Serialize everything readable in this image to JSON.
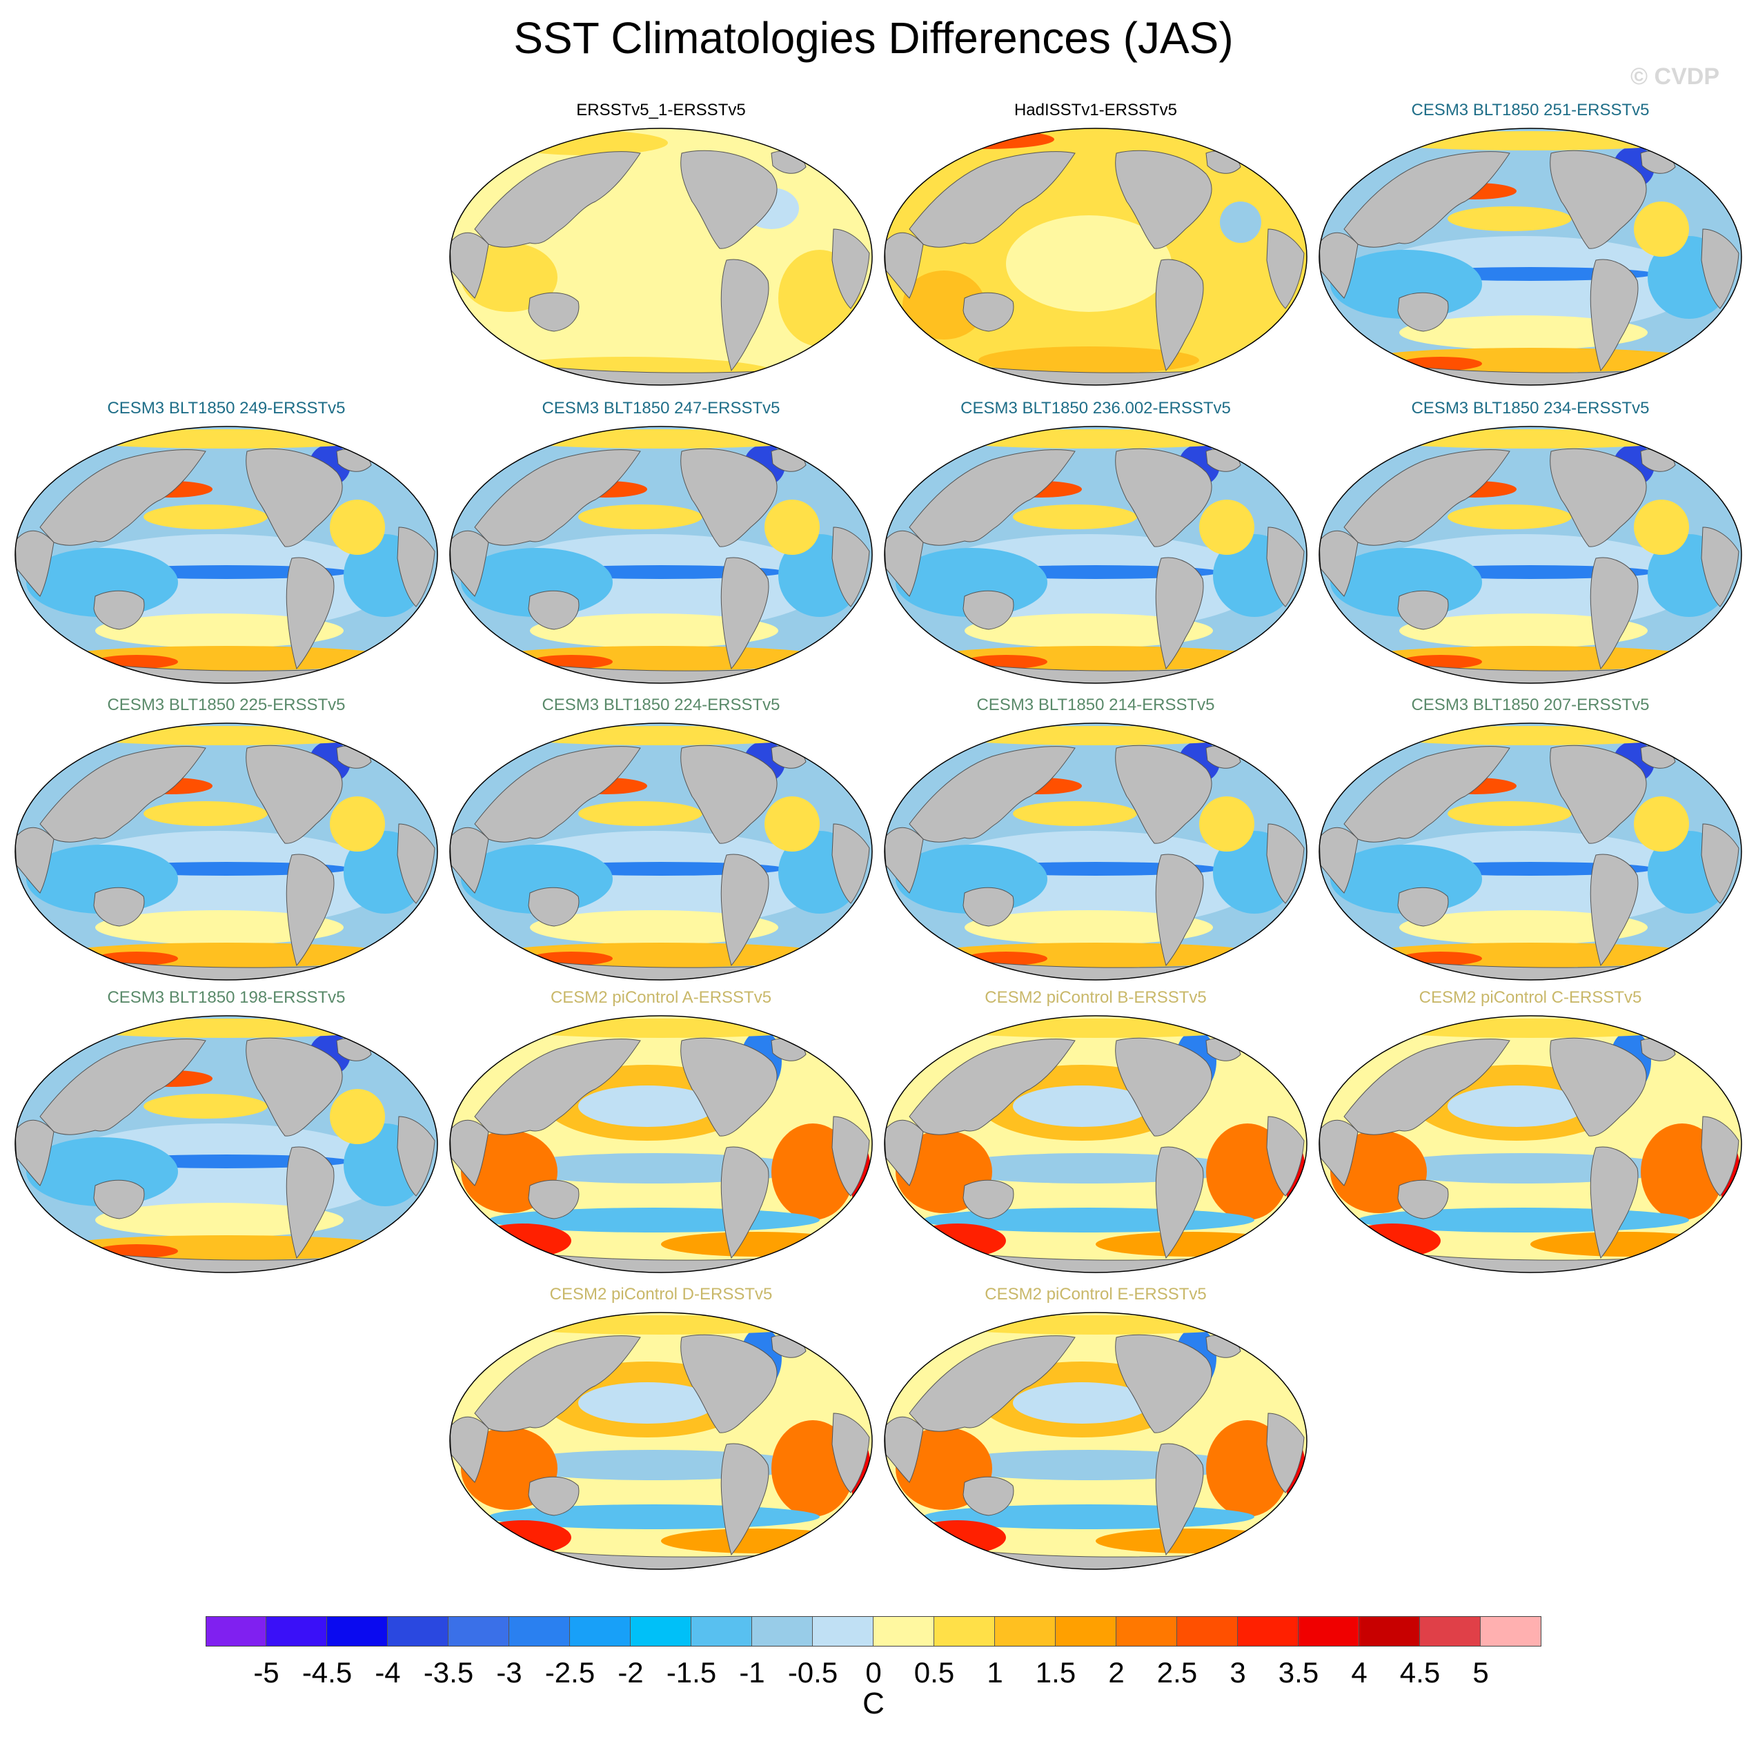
{
  "header": {
    "title": "SST Climatologies Differences (JAS)",
    "copyright": "© CVDP"
  },
  "panels": [
    {
      "title": "ERSSTv5_1-ERSSTv5",
      "color": "#000000",
      "style": "obs_small"
    },
    {
      "title": "HadISSTv1-ERSSTv5",
      "color": "#000000",
      "style": "obs_had"
    },
    {
      "title": "CESM3 BLT1850 251-ERSSTv5",
      "color": "#1f6e88",
      "style": "cesm3"
    },
    {
      "title": "CESM3 BLT1850 249-ERSSTv5",
      "color": "#1f6e88",
      "style": "cesm3"
    },
    {
      "title": "CESM3 BLT1850 247-ERSSTv5",
      "color": "#1f6e88",
      "style": "cesm3"
    },
    {
      "title": "CESM3 BLT1850 236.002-ERSSTv5",
      "color": "#1f6e88",
      "style": "cesm3"
    },
    {
      "title": "CESM3 BLT1850 234-ERSSTv5",
      "color": "#1f6e88",
      "style": "cesm3"
    },
    {
      "title": "CESM3 BLT1850 225-ERSSTv5",
      "color": "#5a8a6a",
      "style": "cesm3"
    },
    {
      "title": "CESM3 BLT1850 224-ERSSTv5",
      "color": "#5a8a6a",
      "style": "cesm3"
    },
    {
      "title": "CESM3 BLT1850 214-ERSSTv5",
      "color": "#5a8a6a",
      "style": "cesm3"
    },
    {
      "title": "CESM3 BLT1850 207-ERSSTv5",
      "color": "#5a8a6a",
      "style": "cesm3"
    },
    {
      "title": "CESM3 BLT1850 198-ERSSTv5",
      "color": "#5a8a6a",
      "style": "cesm3"
    },
    {
      "title": "CESM2 piControl A-ERSSTv5",
      "color": "#c9b86a",
      "style": "cesm2"
    },
    {
      "title": "CESM2 piControl B-ERSSTv5",
      "color": "#c9b86a",
      "style": "cesm2"
    },
    {
      "title": "CESM2 piControl C-ERSSTv5",
      "color": "#c9b86a",
      "style": "cesm2"
    },
    {
      "title": "CESM2 piControl D-ERSSTv5",
      "color": "#c9b86a",
      "style": "cesm2"
    },
    {
      "title": "CESM2 piControl E-ERSSTv5",
      "color": "#c9b86a",
      "style": "cesm2"
    }
  ],
  "colorbar": {
    "colors": [
      "#8020f0",
      "#3a10f8",
      "#0a0af0",
      "#2a48e0",
      "#3a70e8",
      "#2a80f0",
      "#18a0f8",
      "#00c0f8",
      "#58c0f0",
      "#98cce8",
      "#c0e0f4",
      "#fff8a0",
      "#ffe048",
      "#ffc020",
      "#ffa000",
      "#ff7800",
      "#ff5000",
      "#ff2000",
      "#f00000",
      "#c80000",
      "#e04048",
      "#ffb0b0"
    ],
    "labels": [
      "-5",
      "-4.5",
      "-4",
      "-3.5",
      "-3",
      "-2.5",
      "-2",
      "-1.5",
      "-1",
      "-0.5",
      "0",
      "0.5",
      "1",
      "1.5",
      "2",
      "2.5",
      "3",
      "3.5",
      "4",
      "4.5",
      "5"
    ],
    "units": "C"
  }
}
